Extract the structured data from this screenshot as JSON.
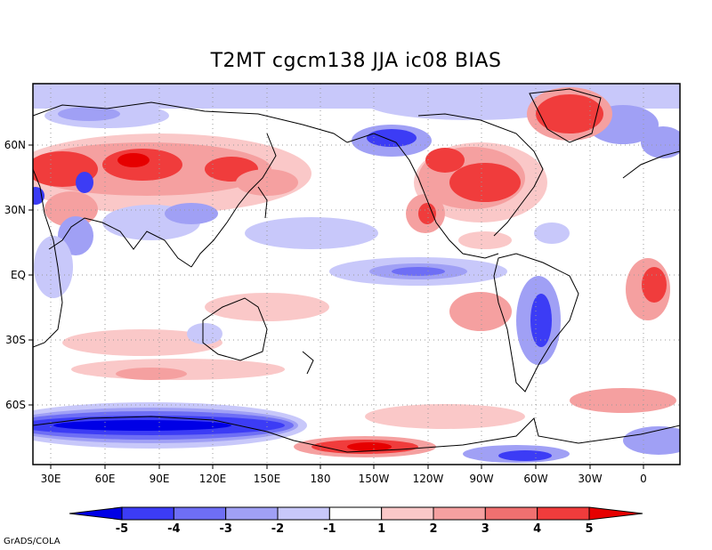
{
  "title": "T2MT cgcm138 JJA ic08 BIAS",
  "credit": "GrADS/COLA",
  "map": {
    "lat_ticks": [
      "60N",
      "30N",
      "EQ",
      "30S",
      "60S"
    ],
    "lon_ticks": [
      "30E",
      "60E",
      "90E",
      "120E",
      "150E",
      "180",
      "150W",
      "120W",
      "90W",
      "60W",
      "30W",
      "0"
    ],
    "grid": "dotted"
  },
  "colorbar": {
    "labels": [
      "-5",
      "-4",
      "-3",
      "-2",
      "-1",
      "1",
      "2",
      "3",
      "4",
      "5"
    ],
    "colors": [
      "#0000e6",
      "#3c3cf5",
      "#6e6ef5",
      "#a0a0f5",
      "#c8c8fa",
      "#ffffff",
      "#fac8c8",
      "#f5a0a0",
      "#f07070",
      "#f03c3c",
      "#e60000"
    ]
  },
  "palette": {
    "blue_strong": "#3c3cf5",
    "blue_mid": "#6e6ef5",
    "blue_light": "#a0a0f5",
    "blue_pale": "#c8c8fa",
    "red_pale": "#fac8c8",
    "red_light": "#f5a0a0",
    "red_mid": "#f07070",
    "red_strong": "#f03c3c",
    "red_max": "#e60000"
  }
}
